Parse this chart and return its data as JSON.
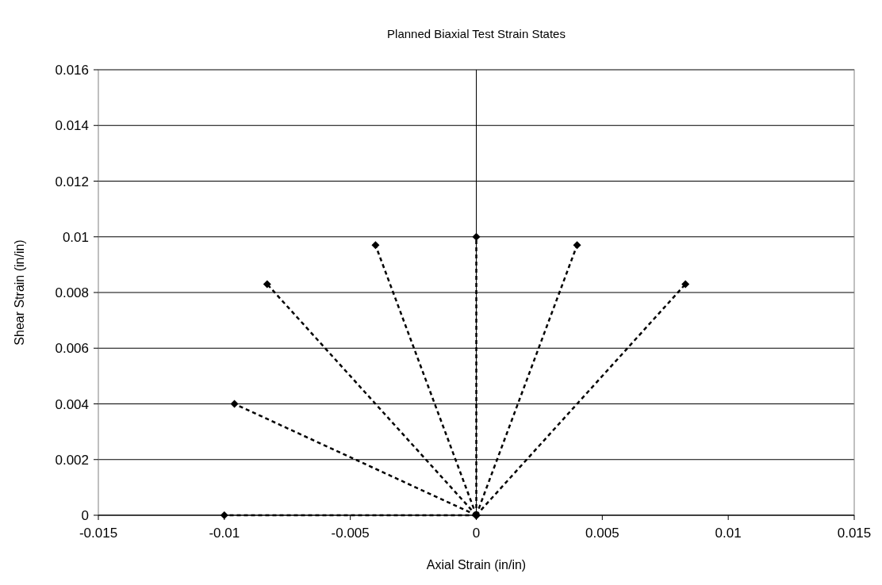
{
  "chart_data": {
    "type": "line",
    "title": "Planned Biaxial Test Strain States",
    "xlabel": "Axial Strain (in/in)",
    "ylabel": "Shear Strain (in/in)",
    "xlim": [
      -0.015,
      0.015
    ],
    "xticks": [
      -0.015,
      -0.01,
      -0.005,
      0,
      0.005,
      0.01,
      0.015
    ],
    "ylim": [
      0,
      0.016
    ],
    "yticks": [
      0,
      0.002,
      0.004,
      0.006,
      0.008,
      0.01,
      0.012,
      0.014,
      0.016
    ],
    "grid": "y",
    "marker": "diamond",
    "line_style": "dashed",
    "series": [
      {
        "color": "#000000",
        "x": [
          0,
          -0.01
        ],
        "values": [
          0,
          0
        ]
      },
      {
        "color": "#000000",
        "x": [
          0,
          -0.0096
        ],
        "values": [
          0,
          0.004
        ]
      },
      {
        "color": "#000000",
        "x": [
          0,
          -0.0083
        ],
        "values": [
          0,
          0.0083
        ]
      },
      {
        "color": "#000000",
        "x": [
          0,
          -0.004
        ],
        "values": [
          0,
          0.0097
        ]
      },
      {
        "color": "#000000",
        "x": [
          0,
          0
        ],
        "values": [
          0,
          0.01
        ]
      },
      {
        "color": "#000000",
        "x": [
          0,
          0.004
        ],
        "values": [
          0,
          0.0097
        ]
      },
      {
        "color": "#000000",
        "x": [
          0,
          0.0083
        ],
        "values": [
          0,
          0.0083
        ]
      }
    ]
  }
}
